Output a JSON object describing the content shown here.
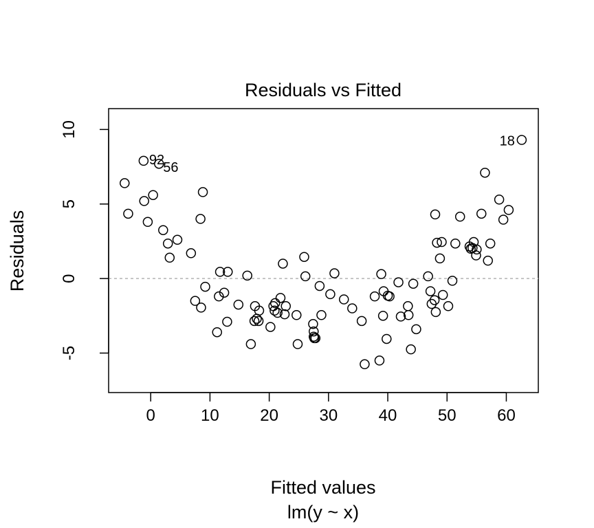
{
  "chart_data": {
    "type": "scatter",
    "title": "Residuals vs Fitted",
    "xlabel": "Fitted values",
    "subtitle": "lm(y ~ x)",
    "ylabel": "Residuals",
    "xlim": [
      -7.1,
      65.4
    ],
    "ylim": [
      -7.65,
      11.4
    ],
    "x_ticks": [
      0,
      10,
      20,
      30,
      40,
      50,
      60
    ],
    "y_ticks": [
      -5,
      0,
      5,
      10
    ],
    "reference_line": 0,
    "grid": false,
    "legend": "none",
    "point_labels": [
      {
        "text": "18",
        "x": 62.6,
        "y": 9.3
      },
      {
        "text": "92",
        "x": -1.2,
        "y": 7.9
      },
      {
        "text": "56",
        "x": 1.4,
        "y": 7.7
      }
    ],
    "points": [
      [
        -4.4,
        6.4
      ],
      [
        -3.8,
        4.35
      ],
      [
        -1.2,
        7.9
      ],
      [
        -1.1,
        5.2
      ],
      [
        -0.5,
        3.8
      ],
      [
        0.4,
        5.6
      ],
      [
        1.4,
        7.7
      ],
      [
        2.1,
        3.25
      ],
      [
        2.9,
        2.35
      ],
      [
        3.2,
        1.4
      ],
      [
        4.5,
        2.6
      ],
      [
        6.8,
        1.7
      ],
      [
        7.5,
        -1.5
      ],
      [
        8.4,
        4.0
      ],
      [
        8.5,
        -1.95
      ],
      [
        8.8,
        5.8
      ],
      [
        9.2,
        -0.55
      ],
      [
        11.2,
        -3.6
      ],
      [
        11.5,
        -1.2
      ],
      [
        11.7,
        0.45
      ],
      [
        12.4,
        -0.95
      ],
      [
        12.9,
        -2.9
      ],
      [
        13.0,
        0.45
      ],
      [
        14.8,
        -1.75
      ],
      [
        16.3,
        0.2
      ],
      [
        16.9,
        -4.4
      ],
      [
        17.5,
        -2.85
      ],
      [
        17.6,
        -1.85
      ],
      [
        17.9,
        -2.7
      ],
      [
        18.2,
        -2.85
      ],
      [
        18.3,
        -2.15
      ],
      [
        20.2,
        -3.25
      ],
      [
        20.7,
        -1.85
      ],
      [
        20.9,
        -2.15
      ],
      [
        21.0,
        -1.65
      ],
      [
        21.4,
        -2.3
      ],
      [
        21.9,
        -1.3
      ],
      [
        22.3,
        1.0
      ],
      [
        22.6,
        -2.4
      ],
      [
        22.8,
        -1.85
      ],
      [
        24.6,
        -2.45
      ],
      [
        24.8,
        -4.4
      ],
      [
        25.9,
        1.45
      ],
      [
        26.1,
        0.15
      ],
      [
        27.4,
        -3.05
      ],
      [
        27.5,
        -3.55
      ],
      [
        27.5,
        -3.9
      ],
      [
        27.6,
        -4.0
      ],
      [
        27.8,
        -4.0
      ],
      [
        28.5,
        -0.5
      ],
      [
        28.8,
        -2.45
      ],
      [
        30.3,
        -1.05
      ],
      [
        31.0,
        0.35
      ],
      [
        32.6,
        -1.4
      ],
      [
        34.0,
        -2.0
      ],
      [
        35.6,
        -2.85
      ],
      [
        36.1,
        -5.75
      ],
      [
        37.8,
        -1.2
      ],
      [
        38.6,
        -5.5
      ],
      [
        38.9,
        0.3
      ],
      [
        39.2,
        -2.5
      ],
      [
        39.3,
        -0.85
      ],
      [
        39.8,
        -4.05
      ],
      [
        40.0,
        -1.15
      ],
      [
        40.3,
        -1.2
      ],
      [
        41.8,
        -0.25
      ],
      [
        42.2,
        -2.55
      ],
      [
        43.4,
        -1.85
      ],
      [
        43.5,
        -2.45
      ],
      [
        43.9,
        -4.75
      ],
      [
        44.3,
        -0.35
      ],
      [
        44.8,
        -3.4
      ],
      [
        46.8,
        0.15
      ],
      [
        47.2,
        -0.85
      ],
      [
        47.4,
        -1.7
      ],
      [
        47.9,
        -1.45
      ],
      [
        48.0,
        4.3
      ],
      [
        48.1,
        -2.25
      ],
      [
        48.3,
        2.4
      ],
      [
        48.8,
        1.35
      ],
      [
        49.1,
        2.45
      ],
      [
        49.3,
        -1.1
      ],
      [
        50.2,
        -1.85
      ],
      [
        50.9,
        -0.15
      ],
      [
        51.4,
        2.35
      ],
      [
        52.2,
        4.15
      ],
      [
        53.8,
        2.15
      ],
      [
        54.0,
        2.0
      ],
      [
        54.3,
        2.05
      ],
      [
        54.5,
        2.45
      ],
      [
        54.9,
        1.55
      ],
      [
        55.0,
        1.95
      ],
      [
        55.8,
        4.35
      ],
      [
        56.4,
        7.1
      ],
      [
        56.9,
        1.2
      ],
      [
        57.3,
        2.35
      ],
      [
        58.8,
        5.3
      ],
      [
        59.5,
        3.95
      ],
      [
        60.4,
        4.6
      ],
      [
        62.6,
        9.3
      ]
    ]
  }
}
